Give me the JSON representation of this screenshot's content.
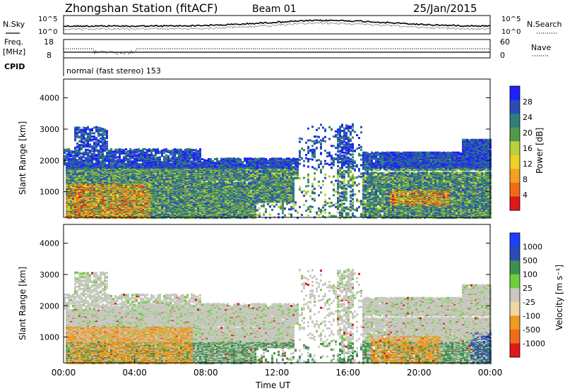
{
  "header": {
    "station": "Zhongshan Station (fitACF)",
    "beam": "Beam 01",
    "date": "25/Jan/2015"
  },
  "summary_panels": {
    "nsky": {
      "label": "N.Sky",
      "ticks": [
        "10^5",
        "10^0"
      ]
    },
    "nsearch": {
      "label": "N.Search",
      "ticks": [
        "10^5",
        "10^0"
      ]
    },
    "freq": {
      "label_line1": "Freq.",
      "label_line2": "[MHz]",
      "ticks": [
        "18",
        "8"
      ]
    },
    "nave": {
      "label": "Nave",
      "ticks": [
        "60",
        "0"
      ]
    },
    "cpid": {
      "label": "CPID",
      "value": "normal (fast stereo) 153"
    }
  },
  "chart_data": [
    {
      "type": "heatmap",
      "parameter": "power",
      "ylabel": "Slant Range [km]",
      "xlabel": "",
      "ylim": [
        180,
        4600
      ],
      "yticks": [
        "1000",
        "2000",
        "3000",
        "4000"
      ],
      "colorbar_label": "Power [dB]",
      "colorbar_ticks": [
        "4",
        "8",
        "12",
        "16",
        "20",
        "24",
        "28"
      ],
      "colorbar_colors": [
        "#1f1fff",
        "#2a4bb8",
        "#2e7f7a",
        "#4f9a4a",
        "#b8d23a",
        "#f0d020",
        "#f5a020",
        "#f06a1a",
        "#e01818"
      ]
    },
    {
      "type": "heatmap",
      "parameter": "velocity",
      "ylabel": "Slant Range [km]",
      "xlabel": "Time UT",
      "ylim": [
        180,
        4600
      ],
      "yticks": [
        "1000",
        "2000",
        "3000",
        "4000"
      ],
      "xticks": [
        "00:00",
        "04:00",
        "08:00",
        "12:00",
        "16:00",
        "20:00",
        "00:00"
      ],
      "colorbar_label": "Velocity [m s⁻¹]",
      "colorbar_ticks": [
        "1000",
        "500",
        "100",
        "25",
        "-25",
        "-100",
        "-500",
        "-1000"
      ],
      "colorbar_colors": [
        "#1f3fff",
        "#2a4bb8",
        "#3d8f52",
        "#6fcf3a",
        "#c8c8c0",
        "#f0d8a0",
        "#f09a20",
        "#f06a1a",
        "#e01818"
      ]
    }
  ]
}
